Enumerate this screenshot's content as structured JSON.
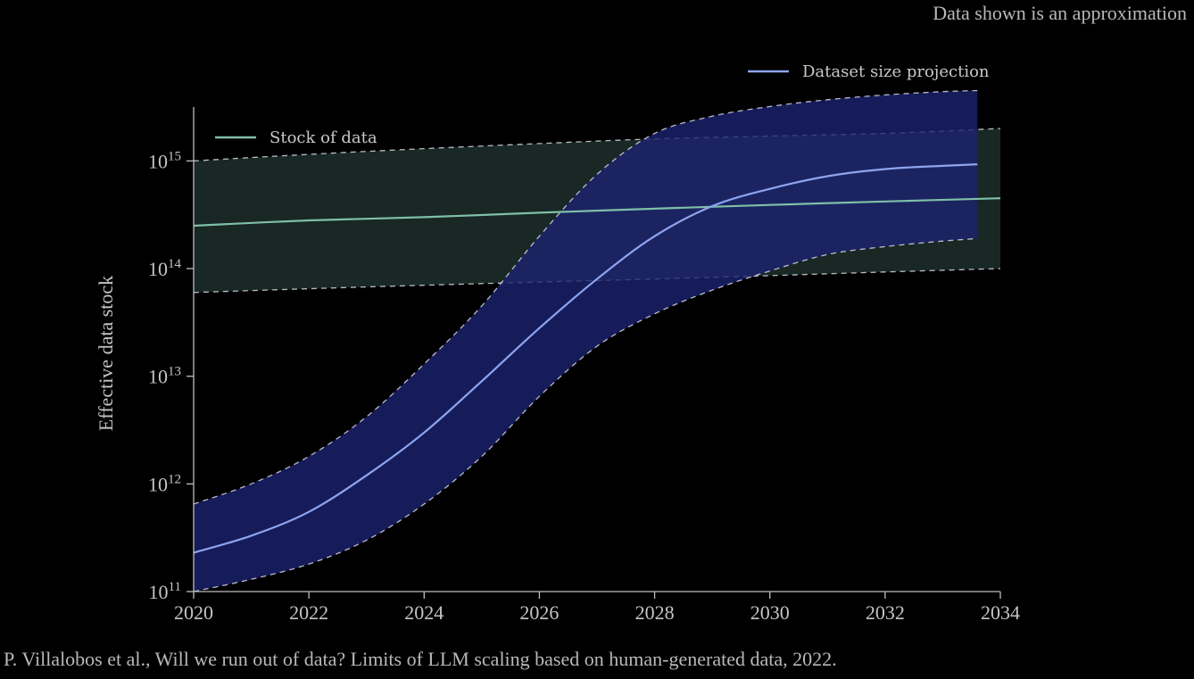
{
  "note": "Data shown is an approximation",
  "citation": "P. Villalobos et al., Will we run out of data? Limits of LLM scaling based on human-generated data, 2022.",
  "chart_data": {
    "type": "line",
    "title": "",
    "xlabel": "",
    "ylabel": "Effective data stock",
    "yscale": "log",
    "xlim": [
      2020,
      2034
    ],
    "ylim_exponent": [
      11,
      15.5
    ],
    "x_ticks": [
      "2020",
      "2022",
      "2024",
      "2026",
      "2028",
      "2030",
      "2032",
      "2034"
    ],
    "y_ticks": [
      {
        "base": "10",
        "exp": "11"
      },
      {
        "base": "10",
        "exp": "12"
      },
      {
        "base": "10",
        "exp": "13"
      },
      {
        "base": "10",
        "exp": "14"
      },
      {
        "base": "10",
        "exp": "15"
      }
    ],
    "legend": [
      {
        "label": "Stock of data",
        "color": "#7fbfa8",
        "position": "top-left"
      },
      {
        "label": "Dataset size projection",
        "color": "#8ea4ee",
        "position": "above-top-right"
      }
    ],
    "series": [
      {
        "name": "Stock of data",
        "color": "#7fbfa8",
        "x": [
          2020,
          2022,
          2024,
          2026,
          2028,
          2030,
          2032,
          2034
        ],
        "y": [
          250000000000000.0,
          280000000000000.0,
          300000000000000.0,
          330000000000000.0,
          360000000000000.0,
          390000000000000.0,
          420000000000000.0,
          450000000000000.0
        ],
        "y_upper": [
          1000000000000000.0,
          1150000000000000.0,
          1300000000000000.0,
          1450000000000000.0,
          1600000000000000.0,
          1700000000000000.0,
          1800000000000000.0,
          2000000000000000.0
        ],
        "y_lower": [
          60000000000000.0,
          65000000000000.0,
          70000000000000.0,
          75000000000000.0,
          80000000000000.0,
          86000000000000.0,
          93000000000000.0,
          100000000000000.0
        ]
      },
      {
        "name": "Dataset size projection",
        "color": "#8ea4ee",
        "x": [
          2020,
          2021,
          2022,
          2023,
          2024,
          2025,
          2026,
          2027,
          2028,
          2029,
          2030,
          2031,
          2032,
          2033,
          2033.6
        ],
        "y": [
          230000000000.0,
          330000000000.0,
          550000000000.0,
          1200000000000.0,
          3000000000000.0,
          9000000000000.0,
          28000000000000.0,
          80000000000000.0,
          200000000000000.0,
          380000000000000.0,
          550000000000000.0,
          720000000000000.0,
          840000000000000.0,
          900000000000000.0,
          930000000000000.0
        ],
        "y_upper": [
          650000000000.0,
          1000000000000.0,
          1800000000000.0,
          4200000000000.0,
          13000000000000.0,
          45000000000000.0,
          200000000000000.0,
          750000000000000.0,
          1800000000000000.0,
          2600000000000000.0,
          3200000000000000.0,
          3700000000000000.0,
          4100000000000000.0,
          4400000000000000.0,
          4500000000000000.0
        ],
        "y_lower": [
          100000000000.0,
          130000000000.0,
          180000000000.0,
          300000000000.0,
          650000000000.0,
          1800000000000.0,
          6500000000000.0,
          19000000000000.0,
          38000000000000.0,
          63000000000000.0,
          95000000000000.0,
          135000000000000.0,
          160000000000000.0,
          180000000000000.0,
          190000000000000.0
        ]
      }
    ]
  }
}
